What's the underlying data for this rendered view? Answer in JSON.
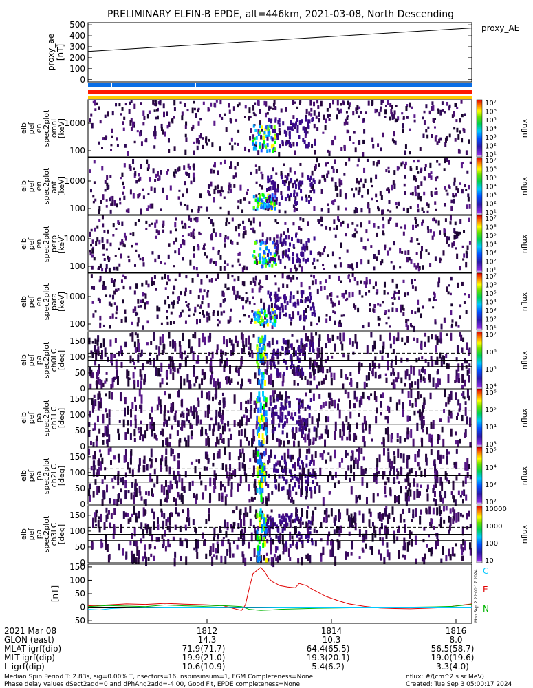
{
  "title": "PRELIMINARY ELFIN-B EPDE, alt=446km, 2021-03-08, North Descending",
  "chart_data": [
    {
      "type": "line",
      "panel": "proxy_ae",
      "ylabel": [
        "proxy_ae",
        "[nT]"
      ],
      "legend": [
        "proxy_AE"
      ],
      "ylim": [
        -20,
        520
      ],
      "yticks": [
        "500",
        "400",
        "300",
        "200",
        "100",
        "0"
      ],
      "yvals": [
        500,
        400,
        300,
        200,
        100,
        0
      ],
      "series": [
        {
          "name": "proxy_AE",
          "x_frac": [
            0.0,
            1.0
          ],
          "values": [
            258,
            472
          ]
        }
      ]
    },
    {
      "type": "heatmap",
      "panel": "pef_en_spec2plot_omni",
      "ylabel": [
        "elb",
        "pef",
        "en",
        "spec2plot",
        "omni",
        "[keV]"
      ],
      "yticks": [
        "1000",
        "100"
      ],
      "colorbar_ticks": [
        "10⁷",
        "10⁶",
        "10⁵",
        "10⁴",
        "10³",
        "10²",
        "10¹"
      ],
      "zlabel": "nflux"
    },
    {
      "type": "heatmap",
      "panel": "pef_en_spec2plot_anti",
      "ylabel": [
        "elb",
        "pef",
        "en",
        "spec2plot",
        "anti",
        "[keV]"
      ],
      "yticks": [
        "1000",
        "100"
      ],
      "colorbar_ticks": [
        "10⁷",
        "10⁶",
        "10⁵",
        "10⁴",
        "10³",
        "10²",
        "10¹"
      ],
      "zlabel": "nflux"
    },
    {
      "type": "heatmap",
      "panel": "pef_en_spec2plot_perp",
      "ylabel": [
        "elb",
        "pef",
        "en",
        "spec2plot",
        "perp",
        "[keV]"
      ],
      "yticks": [
        "1000",
        "100"
      ],
      "colorbar_ticks": [
        "10⁷",
        "10⁶",
        "10⁵",
        "10⁴",
        "10³",
        "10²",
        "10¹"
      ],
      "zlabel": "nflux"
    },
    {
      "type": "heatmap",
      "panel": "pef_en_spec2plot_para",
      "ylabel": [
        "elb",
        "pef",
        "en",
        "spec2plot",
        "para",
        "[keV]"
      ],
      "yticks": [
        "1000",
        "100"
      ],
      "colorbar_ticks": [
        "10⁷",
        "10⁶",
        "10⁵",
        "10⁴",
        "10³",
        "10²",
        "10¹"
      ],
      "zlabel": "nflux"
    },
    {
      "type": "heatmap",
      "panel": "pef_pa_spec2plot_ch0LC",
      "ylabel": [
        "elb",
        "pef",
        "pa",
        "spec2plot",
        "ch0LC",
        "[deg]"
      ],
      "yticks": [
        "150",
        "100",
        "50",
        "0"
      ],
      "colorbar_ticks": [
        "10⁷",
        "10⁶",
        "10⁵",
        "10⁴"
      ],
      "zlabel": "nflux"
    },
    {
      "type": "heatmap",
      "panel": "pef_pa_spec2plot_ch1LC",
      "ylabel": [
        "elb",
        "pef",
        "pa",
        "spec2plot",
        "ch1LC",
        "[deg]"
      ],
      "yticks": [
        "150",
        "100",
        "50",
        "0"
      ],
      "colorbar_ticks": [
        "10⁶",
        "10⁵",
        "10⁴",
        "10³"
      ],
      "zlabel": "nflux"
    },
    {
      "type": "heatmap",
      "panel": "pef_pa_spec2plot_ch2LC",
      "ylabel": [
        "elb",
        "pef",
        "pa",
        "spec2plot",
        "ch2LC",
        "[deg]"
      ],
      "yticks": [
        "150",
        "100",
        "50",
        "0"
      ],
      "colorbar_ticks": [
        "10⁵",
        "10⁴",
        "10³",
        "10²"
      ],
      "zlabel": "nflux"
    },
    {
      "type": "heatmap",
      "panel": "pef_pa_spec2plot_ch3LC",
      "ylabel": [
        "elb",
        "pef",
        "pa",
        "spec2plot",
        "ch3LC",
        "[deg]"
      ],
      "yticks": [
        "150",
        "100",
        "50",
        "0"
      ],
      "colorbar_ticks": [
        "10000",
        "1000",
        "100",
        "10"
      ],
      "zlabel": "nflux"
    },
    {
      "type": "line",
      "panel": "dB_CEN",
      "ylabel": [
        "[nT]"
      ],
      "ylim": [
        -60,
        160
      ],
      "yticks": [
        "150",
        "100",
        "50",
        "0",
        "-50"
      ],
      "yvals": [
        150,
        100,
        50,
        0,
        -50
      ],
      "legend": [
        {
          "name": "C",
          "color": "#00c8ff"
        },
        {
          "name": "E",
          "color": "#e00000"
        },
        {
          "name": "N",
          "color": "#00b400"
        }
      ],
      "series": [
        {
          "name": "E",
          "color": "#e00000",
          "x_frac": [
            0,
            0.05,
            0.1,
            0.15,
            0.2,
            0.25,
            0.3,
            0.35,
            0.38,
            0.4,
            0.41,
            0.42,
            0.43,
            0.45,
            0.46,
            0.47,
            0.48,
            0.49,
            0.5,
            0.52,
            0.54,
            0.55,
            0.57,
            0.58,
            0.6,
            0.62,
            0.65,
            0.68,
            0.72,
            0.76,
            0.8,
            0.84,
            0.88,
            0.92,
            0.96,
            1.0
          ],
          "values": [
            5,
            8,
            12,
            10,
            14,
            11,
            9,
            6,
            -5,
            -12,
            8,
            70,
            125,
            148,
            132,
            108,
            95,
            88,
            80,
            75,
            72,
            88,
            80,
            70,
            55,
            40,
            25,
            12,
            3,
            -3,
            -5,
            -6,
            -4,
            -2,
            5,
            12
          ]
        },
        {
          "name": "N",
          "color": "#00b400",
          "x_frac": [
            0,
            0.05,
            0.1,
            0.15,
            0.2,
            0.25,
            0.3,
            0.35,
            0.4,
            0.42,
            0.45,
            0.48,
            0.5,
            0.55,
            0.6,
            0.65,
            0.7,
            0.75,
            0.8,
            0.85,
            0.9,
            0.95,
            1.0
          ],
          "values": [
            2,
            6,
            4,
            2,
            8,
            5,
            3,
            6,
            2,
            -8,
            -12,
            -10,
            -8,
            -6,
            -4,
            -3,
            -2,
            -1,
            0,
            0,
            1,
            3,
            10
          ]
        },
        {
          "name": "C",
          "color": "#00c8ff",
          "x_frac": [
            0,
            0.03,
            0.06,
            0.1,
            0.2,
            0.3,
            0.4,
            0.5,
            0.6,
            0.7,
            0.8,
            0.9,
            1.0
          ],
          "values": [
            -8,
            -10,
            -5,
            -2,
            0,
            0,
            -1,
            0,
            0,
            0,
            0,
            0,
            0
          ]
        }
      ]
    }
  ],
  "xaxis": {
    "row_labels": [
      "2021 Mar 08",
      "GLON (east)",
      "MLAT-igrf(dip)",
      "MLT-igrf(dip)",
      "L-igrf(dip)"
    ],
    "columns": [
      {
        "values": [
          "1812",
          "14.3",
          "71.9(71.7)",
          "19.9(21.0)",
          "10.6(10.9)"
        ]
      },
      {
        "values": [
          "1814",
          "10.3",
          "64.4(65.5)",
          "19.3(20.1)",
          "5.4(6.2)"
        ]
      },
      {
        "values": [
          "1816",
          "8.0",
          "56.5(58.7)",
          "19.0(19.6)",
          "3.3(4.0)"
        ]
      }
    ]
  },
  "footer": {
    "line1": "Median Spin Period T: 2.83s, sig=0.00% T, nsectors=16, nspinsinsum=1, FGM Completeness=None",
    "line2": "Phase delay values dSect2add=0 and dPhAng2add=-4.00, Good Fit, EPDE completeness=None",
    "units": "nflux: #/(cm^2 s sr MeV)",
    "created": "Created: Tue Sep  3 05:00:17 2024",
    "sidenote": "Mon Sep  2 22:00:17 2024"
  },
  "colors": {
    "cyan": "#00c8ff",
    "red": "#e00000",
    "green": "#00b400",
    "blue_bar": "#0a6ee6",
    "orange_bar": "#ffcc00",
    "red_bar": "#ff1a00",
    "purple": "#3a0a5e"
  }
}
